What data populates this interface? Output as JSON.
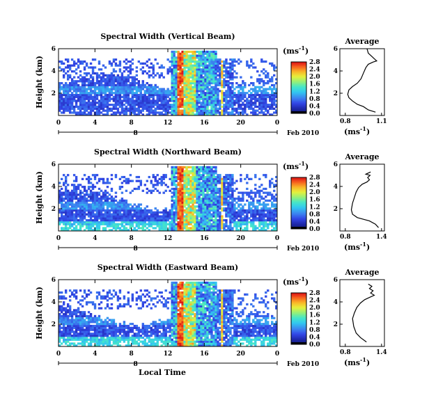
{
  "chart_data": [
    {
      "type": "heatmap",
      "title": "Spectral Width (Vertical Beam)",
      "ylabel": "Height (km)",
      "x_ticks": [
        "0",
        "4",
        "8",
        "12",
        "16",
        "20",
        "0"
      ],
      "y_ticks": [
        "2",
        "4",
        "6"
      ],
      "date_tick": "8",
      "date_label": "Feb 2010",
      "xlim": [
        0,
        24
      ],
      "ylim": [
        0,
        6
      ],
      "colorbar": {
        "unit": "(ms",
        "unit_exp": "-1",
        "unit_close": ")",
        "ticks": [
          "0.0",
          "0.4",
          "0.8",
          "1.2",
          "1.6",
          "2.0",
          "2.4",
          "2.8"
        ]
      },
      "average": {
        "title": "Average",
        "xlabel": "(ms",
        "xlabel_exp": "-1",
        "xlabel_close": ")",
        "x_ticks": [
          "0.8",
          "1.1"
        ],
        "y_ticks": [
          "2",
          "4",
          "6"
        ],
        "profile": [
          [
            1.05,
            0.3
          ],
          [
            0.99,
            0.5
          ],
          [
            0.95,
            0.8
          ],
          [
            0.9,
            1.0
          ],
          [
            0.86,
            1.3
          ],
          [
            0.83,
            1.6
          ],
          [
            0.82,
            1.9
          ],
          [
            0.83,
            2.3
          ],
          [
            0.86,
            2.6
          ],
          [
            0.9,
            2.9
          ],
          [
            0.93,
            3.3
          ],
          [
            0.95,
            3.8
          ],
          [
            0.97,
            4.3
          ],
          [
            0.99,
            4.6
          ],
          [
            1.03,
            4.8
          ],
          [
            1.06,
            4.9
          ],
          [
            1.04,
            5.1
          ],
          [
            1.02,
            5.3
          ],
          [
            0.99,
            5.6
          ],
          [
            0.98,
            6.0
          ]
        ]
      }
    },
    {
      "type": "heatmap",
      "title": "Spectral Width (Northward Beam)",
      "ylabel": "Height (km)",
      "x_ticks": [
        "0",
        "4",
        "8",
        "12",
        "16",
        "20",
        "0"
      ],
      "y_ticks": [
        "2",
        "4",
        "6"
      ],
      "date_tick": "8",
      "date_label": "Feb 2010",
      "xlim": [
        0,
        24
      ],
      "ylim": [
        0,
        6
      ],
      "colorbar": {
        "unit": "(ms",
        "unit_exp": "-1",
        "unit_close": ")",
        "ticks": [
          "0.0",
          "0.4",
          "0.8",
          "1.2",
          "1.6",
          "2.0",
          "2.4",
          "2.8"
        ]
      },
      "average": {
        "title": "Average",
        "xlabel": "(ms",
        "xlabel_exp": "-1",
        "xlabel_close": ")",
        "x_ticks": [
          "0.8",
          "1.4"
        ],
        "y_ticks": [
          "2",
          "4",
          "6"
        ],
        "profile": [
          [
            1.35,
            0.3
          ],
          [
            1.3,
            0.6
          ],
          [
            1.2,
            0.9
          ],
          [
            1.0,
            1.2
          ],
          [
            0.92,
            1.5
          ],
          [
            0.9,
            1.9
          ],
          [
            0.92,
            2.5
          ],
          [
            0.95,
            3.0
          ],
          [
            0.98,
            3.5
          ],
          [
            1.02,
            3.9
          ],
          [
            1.08,
            4.2
          ],
          [
            1.16,
            4.4
          ],
          [
            1.2,
            4.6
          ],
          [
            1.17,
            4.8
          ],
          [
            1.21,
            5.0
          ],
          [
            1.14,
            5.1
          ],
          [
            1.22,
            5.3
          ]
        ]
      }
    },
    {
      "type": "heatmap",
      "title": "Spectral Width (Eastward Beam)",
      "ylabel": "Height (km)",
      "xlabel": "Local Time",
      "x_ticks": [
        "0",
        "4",
        "8",
        "12",
        "16",
        "20",
        "0"
      ],
      "y_ticks": [
        "2",
        "4",
        "6"
      ],
      "date_tick": "8",
      "date_label": "Feb 2010",
      "xlim": [
        0,
        24
      ],
      "ylim": [
        0,
        6
      ],
      "colorbar": {
        "unit": "(ms",
        "unit_exp": "-1",
        "unit_close": ")",
        "ticks": [
          "0.0",
          "0.4",
          "0.8",
          "1.2",
          "1.6",
          "2.0",
          "2.4",
          "2.8"
        ]
      },
      "average": {
        "title": "Average",
        "xlabel": "(ms",
        "xlabel_exp": "-1",
        "xlabel_close": ")",
        "x_ticks": [
          "0.8",
          "1.4"
        ],
        "y_ticks": [
          "2",
          "4",
          "6"
        ],
        "profile": [
          [
            1.15,
            0.4
          ],
          [
            1.05,
            0.8
          ],
          [
            0.98,
            1.2
          ],
          [
            0.94,
            1.8
          ],
          [
            0.92,
            2.5
          ],
          [
            0.95,
            3.0
          ],
          [
            0.99,
            3.5
          ],
          [
            1.05,
            3.9
          ],
          [
            1.12,
            4.2
          ],
          [
            1.2,
            4.4
          ],
          [
            1.28,
            4.6
          ],
          [
            1.22,
            4.8
          ],
          [
            1.26,
            5.0
          ],
          [
            1.2,
            5.2
          ],
          [
            1.24,
            5.4
          ],
          [
            1.18,
            5.6
          ]
        ]
      }
    }
  ]
}
